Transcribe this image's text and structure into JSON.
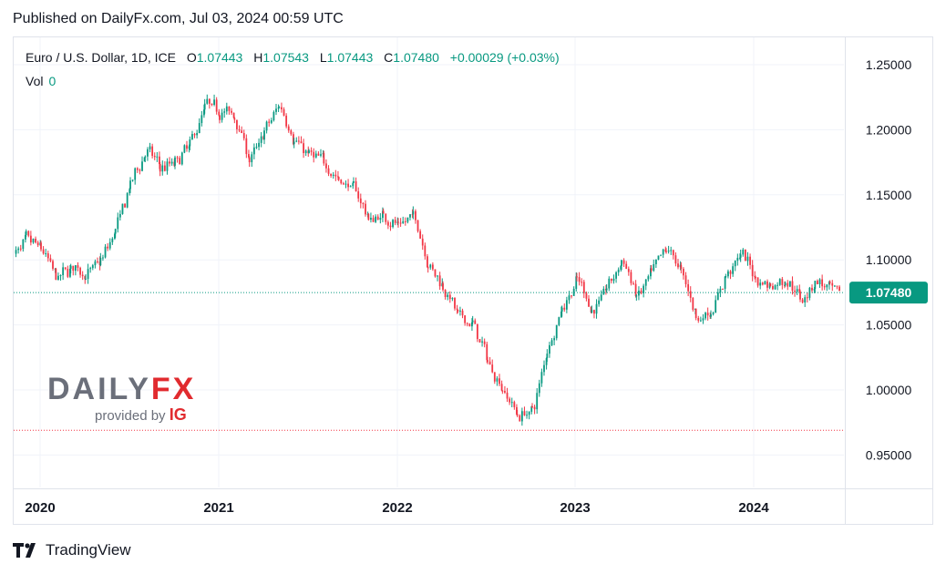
{
  "published": "Published on DailyFx.com, Jul 03, 2024 00:59 UTC",
  "legend": {
    "symbol": "Euro / U.S. Dollar, 1D, ICE",
    "o_label": "O",
    "o_value": "1.07443",
    "h_label": "H",
    "h_value": "1.07543",
    "l_label": "L",
    "l_value": "1.07443",
    "c_label": "C",
    "c_value": "1.07480",
    "change": "+0.00029 (+0.03%)",
    "vol_label": "Vol",
    "vol_value": "0"
  },
  "brand": {
    "dailyfx_left": "DAILY",
    "dailyfx_right": "FX",
    "provided_by": "provided by",
    "ig": "IG",
    "tradingview": "TradingView"
  },
  "colors": {
    "up": "#089981",
    "down": "#f23645",
    "price_tag": "#089981",
    "grid": "#f0f3fa"
  },
  "chart_data": {
    "type": "candlestick",
    "title": "Euro / U.S. Dollar, 1D, ICE",
    "y_ticks": [
      "1.25000",
      "1.20000",
      "1.15000",
      "1.10000",
      "1.05000",
      "1.00000",
      "0.95000"
    ],
    "x_ticks": [
      "2020",
      "2021",
      "2022",
      "2023",
      "2024"
    ],
    "ylim": [
      0.92,
      1.26
    ],
    "last_price": "1.07480",
    "last_price_value": 1.0748,
    "low_line_value": 0.969,
    "series": [
      {
        "x": [
          "2019-11",
          "2019-12",
          "2020-01",
          "2020-02",
          "2020-03",
          "2020-04",
          "2020-05",
          "2020-06",
          "2020-07",
          "2020-08",
          "2020-09",
          "2020-10",
          "2020-11",
          "2020-12",
          "2021-01",
          "2021-02",
          "2021-03",
          "2021-04",
          "2021-05",
          "2021-06",
          "2021-07",
          "2021-08",
          "2021-09",
          "2021-10",
          "2021-11",
          "2021-12",
          "2022-01",
          "2022-02",
          "2022-03",
          "2022-04",
          "2022-05",
          "2022-06",
          "2022-07",
          "2022-08",
          "2022-09",
          "2022-10",
          "2022-11",
          "2022-12",
          "2023-01",
          "2023-02",
          "2023-03",
          "2023-04",
          "2023-05",
          "2023-06",
          "2023-07",
          "2023-08",
          "2023-09",
          "2023-10",
          "2023-11",
          "2023-12",
          "2024-01",
          "2024-02",
          "2024-03",
          "2024-04",
          "2024-05",
          "2024-06",
          "2024-07"
        ],
        "values": [
          1.102,
          1.115,
          1.108,
          1.085,
          1.095,
          1.088,
          1.1,
          1.125,
          1.16,
          1.185,
          1.17,
          1.175,
          1.19,
          1.22,
          1.215,
          1.21,
          1.175,
          1.2,
          1.22,
          1.19,
          1.18,
          1.175,
          1.16,
          1.155,
          1.13,
          1.135,
          1.125,
          1.135,
          1.095,
          1.08,
          1.055,
          1.05,
          1.02,
          1.0,
          0.98,
          0.985,
          1.035,
          1.065,
          1.085,
          1.06,
          1.08,
          1.1,
          1.07,
          1.09,
          1.11,
          1.09,
          1.055,
          1.06,
          1.09,
          1.105,
          1.085,
          1.08,
          1.085,
          1.07,
          1.085,
          1.075,
          1.0748
        ]
      }
    ]
  }
}
